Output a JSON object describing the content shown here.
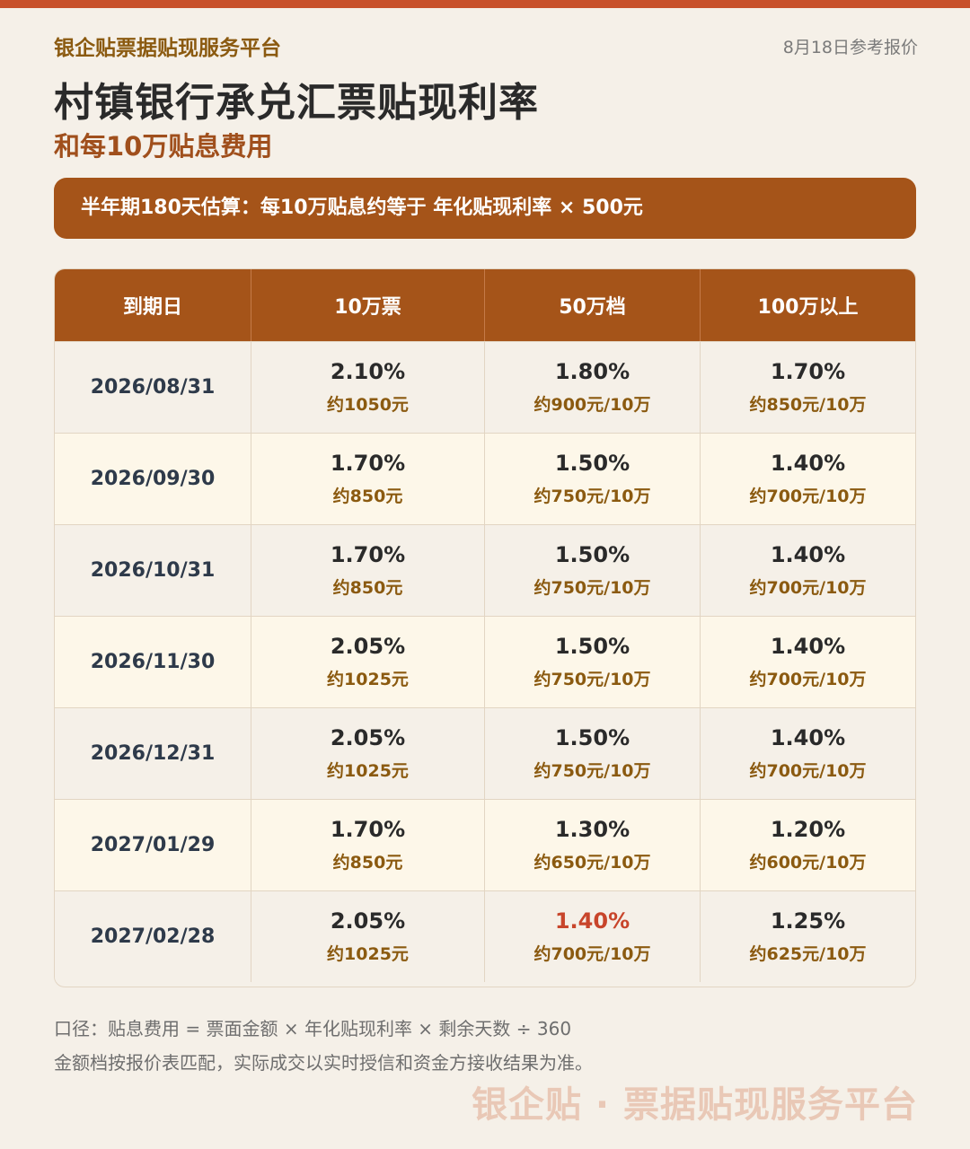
{
  "colors": {
    "accent": "#a55419",
    "top_bar": "#c8512b",
    "background": "#f5f0e8",
    "highlight_red": "#c8452b",
    "fee_brown": "#8b5a10"
  },
  "header": {
    "brand": "银企贴票据贴现服务平台",
    "date_ref": "8月18日参考报价",
    "title": "村镇银行承兑汇票贴现利率",
    "subtitle": "和每10万贴息费用"
  },
  "banner": {
    "text": "半年期180天估算：每10万贴息约等于 年化贴现利率 × 500元"
  },
  "table": {
    "columns": [
      "到期日",
      "10万票",
      "50万档",
      "100万以上"
    ],
    "rows": [
      {
        "date": "2026/08/31",
        "c1_rate": "2.10%",
        "c1_fee": "约1050元",
        "c2_rate": "1.80%",
        "c2_fee": "约900元/10万",
        "c3_rate": "1.70%",
        "c3_fee": "约850元/10万"
      },
      {
        "date": "2026/09/30",
        "c1_rate": "1.70%",
        "c1_fee": "约850元",
        "c2_rate": "1.50%",
        "c2_fee": "约750元/10万",
        "c3_rate": "1.40%",
        "c3_fee": "约700元/10万"
      },
      {
        "date": "2026/10/31",
        "c1_rate": "1.70%",
        "c1_fee": "约850元",
        "c2_rate": "1.50%",
        "c2_fee": "约750元/10万",
        "c3_rate": "1.40%",
        "c3_fee": "约700元/10万"
      },
      {
        "date": "2026/11/30",
        "c1_rate": "2.05%",
        "c1_fee": "约1025元",
        "c2_rate": "1.50%",
        "c2_fee": "约750元/10万",
        "c3_rate": "1.40%",
        "c3_fee": "约700元/10万"
      },
      {
        "date": "2026/12/31",
        "c1_rate": "2.05%",
        "c1_fee": "约1025元",
        "c2_rate": "1.50%",
        "c2_fee": "约750元/10万",
        "c3_rate": "1.40%",
        "c3_fee": "约700元/10万"
      },
      {
        "date": "2027/01/29",
        "c1_rate": "1.70%",
        "c1_fee": "约850元",
        "c2_rate": "1.30%",
        "c2_fee": "约650元/10万",
        "c3_rate": "1.20%",
        "c3_fee": "约600元/10万"
      },
      {
        "date": "2027/02/28",
        "c1_rate": "2.05%",
        "c1_fee": "约1025元",
        "c2_rate": "1.40%",
        "c2_fee": "约700元/10万",
        "c3_rate": "1.25%",
        "c3_fee": "约625元/10万"
      }
    ]
  },
  "notes": {
    "formula": "口径：贴息费用 = 票面金额 × 年化贴现利率 × 剩余天数 ÷ 360",
    "disclaimer": "金额档按报价表匹配，实际成交以实时授信和资金方接收结果为准。"
  },
  "watermark": "银企贴 · 票据贴现服务平台"
}
